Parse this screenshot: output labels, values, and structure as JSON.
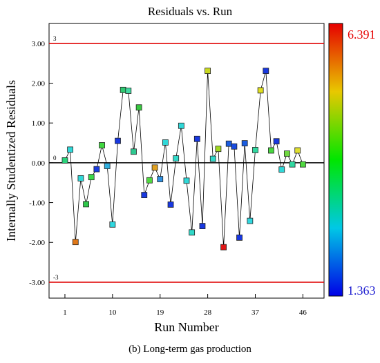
{
  "chart_data": {
    "type": "scatter",
    "title": "Residuals vs. Run",
    "xlabel": "Run Number",
    "ylabel": "Internally Studentized Residuals",
    "caption": "(b) Long-term gas production",
    "xlim": [
      -2,
      50
    ],
    "ylim": [
      -3.4,
      3.5
    ],
    "x_ticks": [
      1,
      10,
      19,
      28,
      37,
      46
    ],
    "y_ticks": [
      -3.0,
      -2.0,
      -1.0,
      0.0,
      1.0,
      2.0,
      3.0
    ],
    "y_tick_labels": [
      "-3.00",
      "-2.00",
      "-1.00",
      "0.00",
      "1.00",
      "2.00",
      "3.00"
    ],
    "grid": false,
    "reference_lines": [
      {
        "y": 3,
        "label": "3",
        "color": "#e00000"
      },
      {
        "y": 0,
        "label": "0",
        "color": "#000000"
      },
      {
        "y": -3,
        "label": "-3",
        "color": "#e00000"
      }
    ],
    "color_scale": {
      "max_label": "6.391",
      "min_label": "1.363",
      "max_color": "#e60000",
      "min_color": "#0000e6",
      "placement": "right"
    },
    "series": [
      {
        "x": [
          1,
          2,
          3,
          4,
          5,
          6,
          7,
          8,
          9,
          10,
          11,
          12,
          13,
          14,
          15,
          16,
          17,
          18,
          19,
          20,
          21,
          22,
          23,
          24,
          25,
          26,
          27,
          28,
          29,
          30,
          31,
          32,
          33,
          34,
          35,
          36,
          37,
          38,
          39,
          40,
          41,
          42,
          43,
          44,
          45,
          46
        ],
        "y": [
          0.06,
          0.33,
          -1.99,
          -0.39,
          -1.04,
          -0.36,
          -0.16,
          0.44,
          -0.08,
          -1.55,
          0.55,
          1.83,
          1.81,
          0.28,
          1.39,
          -0.81,
          -0.44,
          -0.12,
          -0.41,
          0.51,
          -1.05,
          0.11,
          0.93,
          -0.45,
          -1.75,
          0.6,
          -1.59,
          2.31,
          0.1,
          0.35,
          -2.12,
          0.48,
          0.41,
          -1.88,
          0.49,
          -1.46,
          0.32,
          1.82,
          2.31,
          0.31,
          0.54,
          -0.17,
          0.23,
          -0.04,
          0.31,
          -0.04
        ],
        "colors": [
          "#2ad27a",
          "#30d8d8",
          "#e07818",
          "#30d8d8",
          "#2ec84a",
          "#3cd848",
          "#1a3ce0",
          "#40d840",
          "#30b0e0",
          "#30d8e0",
          "#1838e0",
          "#2ec870",
          "#40d8a0",
          "#2ec890",
          "#38c840",
          "#1838e0",
          "#50d840",
          "#e0a020",
          "#3090e0",
          "#30d8d8",
          "#1838e0",
          "#30d8c8",
          "#30d8d8",
          "#30d8d8",
          "#30d8c8",
          "#1838e0",
          "#1838e0",
          "#c8d820",
          "#30d8c8",
          "#a0d820",
          "#e01818",
          "#1a5ce0",
          "#1a4ce0",
          "#1838e0",
          "#1a5ce0",
          "#30d8e0",
          "#30d8a0",
          "#e0e020",
          "#1838e0",
          "#48d840",
          "#1838e0",
          "#30d8d8",
          "#70d840",
          "#30d8a0",
          "#e0e030",
          "#50d840"
        ]
      }
    ]
  }
}
